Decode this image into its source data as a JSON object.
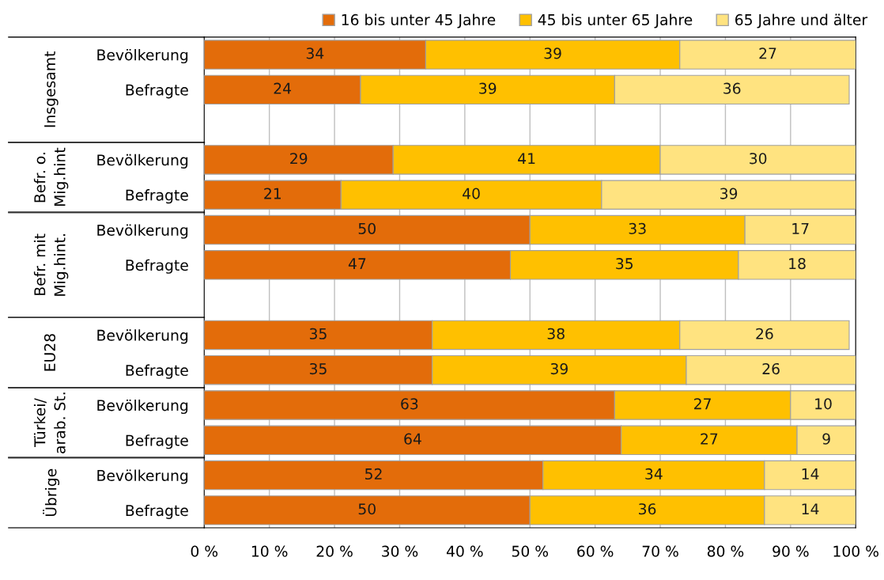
{
  "chart_data": {
    "type": "bar",
    "orientation": "horizontal",
    "stacked": true,
    "categories": [
      "Bevölkerung",
      "Befragte",
      null,
      "Bevölkerung",
      "Befragte",
      "Bevölkerung",
      "Befragte",
      null,
      "Bevölkerung",
      "Befragte",
      "Bevölkerung",
      "Befragte",
      "Bevölkerung",
      "Befragte"
    ],
    "series": [
      {
        "name": "16 bis unter 45 Jahre",
        "color": "#e36c0a",
        "values": [
          34,
          24,
          null,
          29,
          21,
          50,
          47,
          null,
          35,
          35,
          63,
          64,
          52,
          50
        ]
      },
      {
        "name": "45 bis unter 65 Jahre",
        "color": "#ffc000",
        "values": [
          39,
          39,
          null,
          41,
          40,
          33,
          35,
          null,
          38,
          39,
          27,
          27,
          34,
          36
        ]
      },
      {
        "name": "65 Jahre und älter",
        "color": "#ffe380",
        "values": [
          27,
          36,
          null,
          30,
          39,
          17,
          18,
          null,
          26,
          26,
          10,
          9,
          14,
          14
        ]
      }
    ],
    "annotations": [
      "Insgesamt",
      "Befr. o.\nMig.hint",
      "Befr. mit\nMig.hint.",
      "EU28",
      "Türkei/\narab. St.",
      "Übrige"
    ],
    "xlim": [
      0,
      100
    ],
    "xticks": [
      {
        "value": 0,
        "label": "0 %"
      },
      {
        "value": 10,
        "label": "10 %"
      },
      {
        "value": 20,
        "label": "20 %"
      },
      {
        "value": 30,
        "label": "30 %"
      },
      {
        "value": 40,
        "label": "40 %"
      },
      {
        "value": 50,
        "label": "50 %"
      },
      {
        "value": 60,
        "label": "60 %"
      },
      {
        "value": 70,
        "label": "70 %"
      },
      {
        "value": 80,
        "label": "80 %"
      },
      {
        "value": 90,
        "label": "90 %"
      },
      {
        "value": 100,
        "label": "100 %"
      }
    ],
    "grid": "x",
    "legend": "top",
    "data_labels": true
  }
}
